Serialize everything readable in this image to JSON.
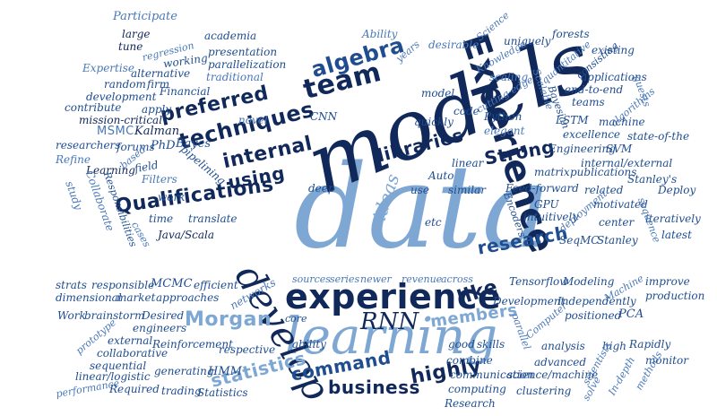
{
  "word_cloud": {
    "colors": {
      "navy": "#10285a",
      "dark_blue": "#1f4d8f",
      "medium_blue": "#4a78b8",
      "light_blue": "#7ea7d4",
      "background": "#ffffff"
    },
    "words": {
      "data": "data",
      "models": "models",
      "experience": "experience",
      "experience_2": "Experience",
      "learning": "learning",
      "develop": "develop",
      "team": "team",
      "qualifications": "Qualifications",
      "techniques": "techniques",
      "preferred": "preferred",
      "internal": "internal",
      "using": "using",
      "algebra": "algebra",
      "libraries": "libraries",
      "strong": "Strong",
      "research": "research",
      "ideas": "ideas",
      "morgan": "Morgan",
      "rnn": "RNN",
      "members": "members",
      "like": "like",
      "statistics": "statistics",
      "command": "command",
      "business": "business",
      "highly": "highly",
      "participate": "Participate",
      "academia": "academia",
      "large": "large",
      "tune": "tune",
      "regression": "regression",
      "working": "working",
      "presentation": "presentation",
      "parallelization": "parallelization",
      "expertise": "Expertise",
      "alternative": "alternative",
      "traditional": "traditional",
      "random": "random",
      "firm": "firm",
      "development": "development",
      "financial": "Financial",
      "contribute": "contribute",
      "apply": "apply",
      "mission_critical": "mission-critical",
      "novel": "novel",
      "msmc": "MSMC",
      "kalman": "Kalman",
      "researchers": "researchers",
      "forums": "forums",
      "phd": "PhD",
      "bayes": "Bayes",
      "refine": "Refine",
      "based": "based",
      "learning_small": "Learning",
      "field": "field",
      "pipelining": "pipelining",
      "filters": "Filters",
      "study": "study",
      "collaborate": "Collaborate",
      "responsibilities": "Responsibilities",
      "work": "work",
      "time": "time",
      "translate": "translate",
      "java_scala": "Java/Scala",
      "cases": "cases",
      "ability": "Ability",
      "desirable": "desirable",
      "science": "Science",
      "uniquely": "uniquely",
      "forests": "forests",
      "existing": "existing",
      "years": "years",
      "knowledge": "Knowledge",
      "quantitative": "quantitative",
      "consisting": "consisting",
      "scaling": "scaling",
      "applications": "applications",
      "end_to_end": "end-to-end",
      "cutting_edge": "cutting-edge",
      "scalable": "Scalable",
      "guests": "guests",
      "bayesian": "Bayesian",
      "teams": "teams",
      "algorithms": "algorithms",
      "model": "model",
      "code": "code",
      "lstm": "LSTM",
      "cnn": "CNN",
      "python": "Python",
      "quickly": "quickly",
      "elegant": "elegant",
      "machine": "machine",
      "excellence": "excellence",
      "state_of_the": "state-of-the",
      "svm": "SVM",
      "engineering": "Engineering",
      "linear": "linear",
      "internal_external": "internal/external",
      "auto": "Auto",
      "matrix": "matrix",
      "publications": "publications",
      "stanleys": "Stanley's",
      "deploy": "Deploy",
      "deep": "deep",
      "use": "use",
      "similar": "similar",
      "feed_forward": "Feed-forward",
      "related": "related",
      "gpu": "GPU",
      "deployment": "deployment",
      "motivated": "motivated",
      "encoders": "Encoders",
      "etc": "etc",
      "intuitively": "intuitively",
      "center": "center",
      "iteratively": "iteratively",
      "sequence": "sequence",
      "latest": "latest",
      "seqmc": "SeqMC",
      "stanley": "Stanley",
      "strats": "strats",
      "responsible": "responsible",
      "mcmc": "MCMC",
      "efficient": "efficient",
      "networks": "networks",
      "sources": "sources",
      "series": "series",
      "newer": "newer",
      "revenue": "revenue",
      "across": "across",
      "tensorflow": "Tensorflow",
      "modeling": "Modeling",
      "machine_2": "Machine",
      "improve": "improve",
      "dimensional": "dimensional",
      "market": "market",
      "approaches": "approaches",
      "development_2": "Development",
      "independently": "Independently",
      "production": "production",
      "work_2": "Work",
      "brainstorm": "brainstorm",
      "desired": "Desired",
      "core": "core",
      "computer": "Computer",
      "positioned": "positioned",
      "pca": "PCA",
      "prototype": "prototype",
      "engineers": "engineers",
      "external": "external",
      "parallel": "parallel",
      "collaborative": "collaborative",
      "reinforcement": "Reinforcement",
      "respective": "respective",
      "ability_2": "ability",
      "good": "good",
      "skills": "skills",
      "analysis": "analysis",
      "high": "high",
      "rapidly": "Rapidly",
      "sequential": "sequential",
      "combine": "combine",
      "advanced": "advanced",
      "scientists": "scientists",
      "monitor": "monitor",
      "linear_logistic": "linear/logistic",
      "generating": "generating",
      "hmm": "HMM",
      "communication": "communication",
      "in_depth": "In-depth",
      "methods": "methods",
      "performance": "performance",
      "required": "Required",
      "trading": "trading",
      "statistics_2": "Statistics",
      "computing": "computing",
      "science_machine": "science/machine",
      "clustering": "clustering",
      "solve": "solve",
      "research_2": "Research"
    }
  }
}
